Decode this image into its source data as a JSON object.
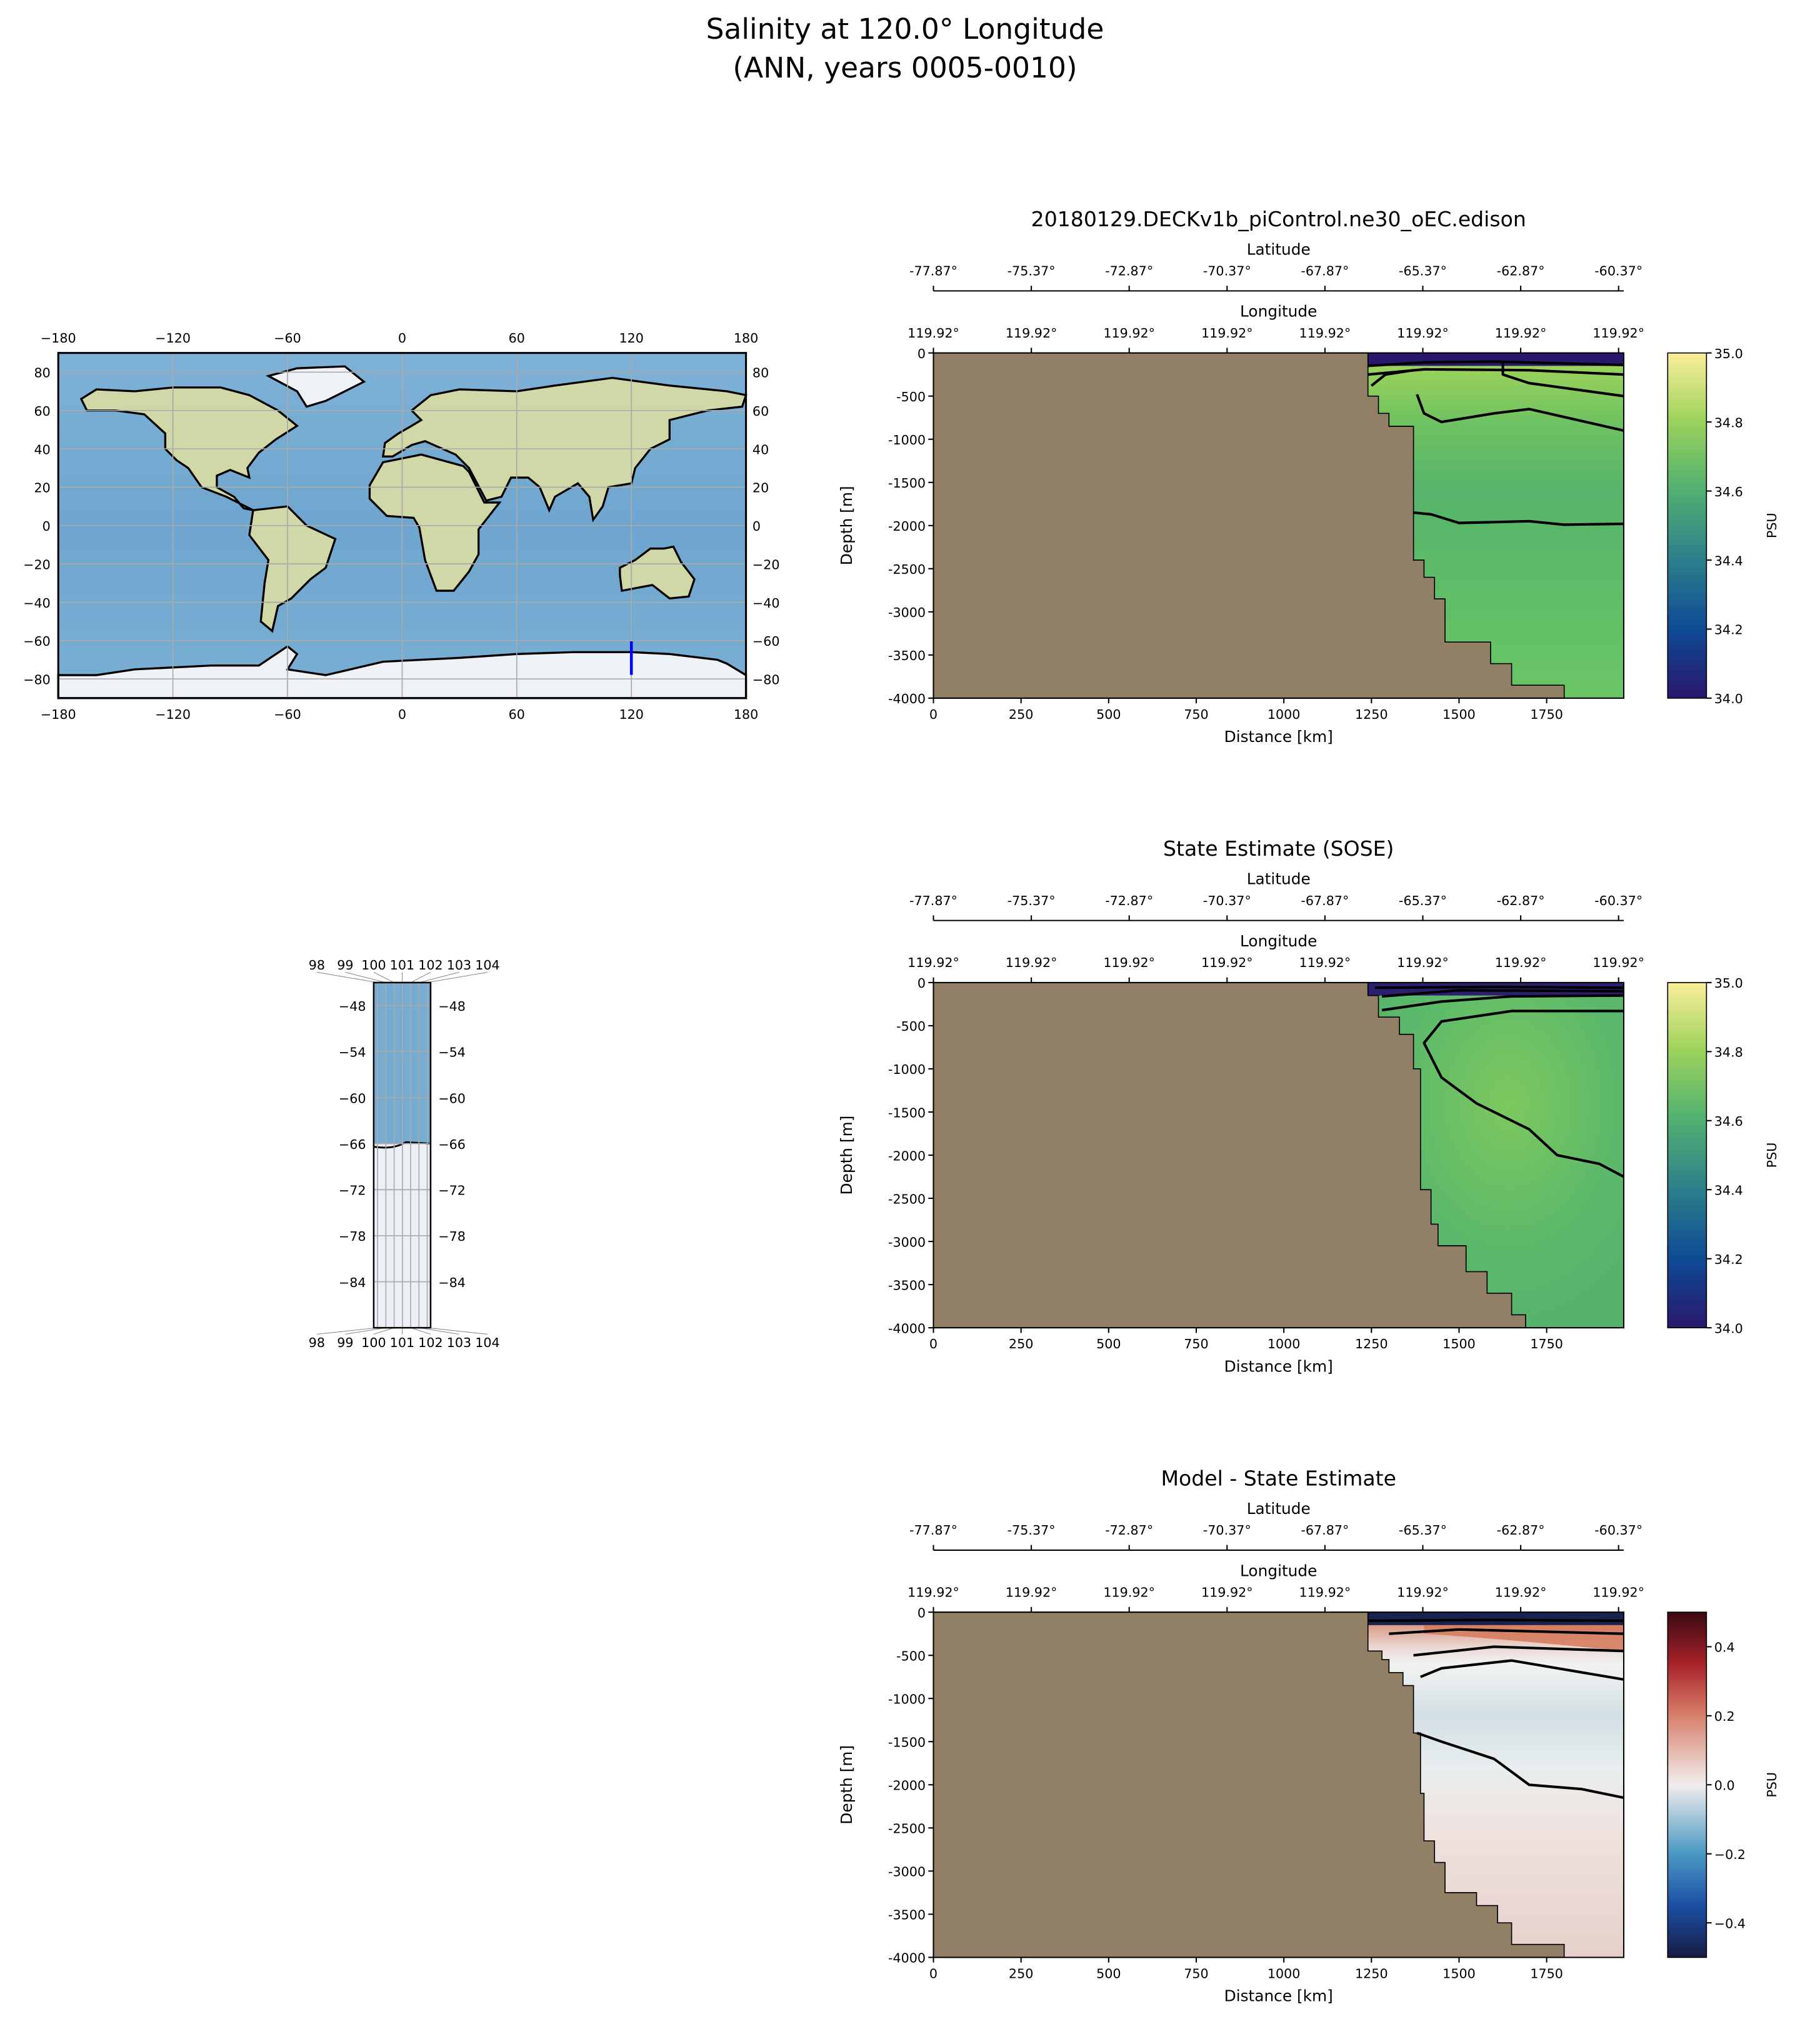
{
  "figure": {
    "title_line1": "Salinity at 120.0° Longitude",
    "title_line2": "(ANN, years 0005-0010)"
  },
  "chart_data": [
    {
      "type": "map",
      "name": "global-map",
      "xlim": [
        -180,
        180
      ],
      "ylim": [
        -90,
        90
      ],
      "xticks": [
        "−180",
        "−120",
        "−60",
        "0",
        "60",
        "120",
        "180"
      ],
      "xtick_values": [
        -180,
        -120,
        -60,
        0,
        60,
        120,
        180
      ],
      "yticks": [
        "−80",
        "−60",
        "−40",
        "−20",
        "0",
        "20",
        "40",
        "60",
        "80"
      ],
      "ytick_values": [
        -80,
        -60,
        -40,
        -20,
        0,
        20,
        40,
        60,
        80
      ],
      "grid": true,
      "section_line": {
        "lon": 120,
        "lat": [
          -60.37,
          -77.87
        ],
        "color": "#0000ff"
      }
    },
    {
      "type": "map",
      "name": "inset-map",
      "ylim": [
        -90,
        -45
      ],
      "xticks": [
        "98",
        "99",
        "100",
        "101",
        "102",
        "103",
        "104"
      ],
      "yticks": [
        "−48",
        "−54",
        "−60",
        "−66",
        "−72",
        "−78",
        "−84"
      ],
      "ytick_values": [
        -48,
        -54,
        -60,
        -66,
        -72,
        -78,
        -84
      ],
      "coast_lat": -66,
      "grid": true
    },
    {
      "type": "heatmap",
      "name": "model-section",
      "title": "20180129.DECKv1b_piControl.ne30_oEC.edison",
      "xlabel": "Distance [km]",
      "ylabel": "Depth [m]",
      "top_label1": "Latitude",
      "top_label2": "Longitude",
      "lat_ticks": [
        "-77.87°",
        "-75.37°",
        "-72.87°",
        "-70.37°",
        "-67.87°",
        "-65.37°",
        "-62.87°",
        "-60.37°"
      ],
      "lon_ticks": [
        "119.92°",
        "119.92°",
        "119.92°",
        "119.92°",
        "119.92°",
        "119.92°",
        "119.92°",
        "119.92°"
      ],
      "xlim": [
        0,
        1970
      ],
      "ylim": [
        -4000,
        0
      ],
      "xticks": [
        0,
        250,
        500,
        750,
        1000,
        1250,
        1500,
        1750
      ],
      "yticks": [
        0,
        -500,
        -1000,
        -1500,
        -2000,
        -2500,
        -3000,
        -3500,
        -4000
      ],
      "colorbar": {
        "label": "PSU",
        "range": [
          34.0,
          35.0
        ],
        "ticks": [
          "34.0",
          "34.2",
          "34.4",
          "34.6",
          "34.8",
          "35.0"
        ],
        "tick_values": [
          34.0,
          34.2,
          34.4,
          34.6,
          34.8,
          35.0
        ],
        "colormap": "haline"
      },
      "land_boundary": [
        [
          1240,
          0
        ],
        [
          1240,
          -500
        ],
        [
          1270,
          -500
        ],
        [
          1270,
          -700
        ],
        [
          1300,
          -700
        ],
        [
          1300,
          -850
        ],
        [
          1370,
          -850
        ],
        [
          1370,
          -2400
        ],
        [
          1400,
          -2400
        ],
        [
          1400,
          -2600
        ],
        [
          1430,
          -2600
        ],
        [
          1430,
          -2850
        ],
        [
          1460,
          -2850
        ],
        [
          1460,
          -3350
        ],
        [
          1590,
          -3350
        ],
        [
          1590,
          -3600
        ],
        [
          1650,
          -3600
        ],
        [
          1650,
          -3850
        ],
        [
          1800,
          -3850
        ],
        [
          1800,
          -4000
        ]
      ],
      "contours": [
        [
          [
            1240,
            -150
          ],
          [
            1400,
            -110
          ],
          [
            1600,
            -100
          ],
          [
            1970,
            -140
          ]
        ],
        [
          [
            1240,
            -250
          ],
          [
            1400,
            -190
          ],
          [
            1700,
            -200
          ],
          [
            1970,
            -250
          ]
        ],
        [
          [
            1250,
            -380
          ],
          [
            1290,
            -250
          ],
          [
            1370,
            -200
          ]
        ],
        [
          [
            1625,
            -110
          ],
          [
            1625,
            -250
          ],
          [
            1700,
            -350
          ],
          [
            1970,
            -500
          ]
        ],
        [
          [
            1380,
            -480
          ],
          [
            1400,
            -700
          ],
          [
            1450,
            -800
          ],
          [
            1600,
            -700
          ],
          [
            1700,
            -650
          ],
          [
            1970,
            -900
          ]
        ],
        [
          [
            1370,
            -1850
          ],
          [
            1420,
            -1870
          ],
          [
            1500,
            -1970
          ],
          [
            1700,
            -1950
          ],
          [
            1800,
            -1990
          ],
          [
            1970,
            -1980
          ]
        ]
      ]
    },
    {
      "type": "heatmap",
      "name": "sose-section",
      "title": "State Estimate (SOSE)",
      "xlabel": "Distance [km]",
      "ylabel": "Depth [m]",
      "top_label1": "Latitude",
      "top_label2": "Longitude",
      "lat_ticks": [
        "-77.87°",
        "-75.37°",
        "-72.87°",
        "-70.37°",
        "-67.87°",
        "-65.37°",
        "-62.87°",
        "-60.37°"
      ],
      "lon_ticks": [
        "119.92°",
        "119.92°",
        "119.92°",
        "119.92°",
        "119.92°",
        "119.92°",
        "119.92°",
        "119.92°"
      ],
      "xlim": [
        0,
        1970
      ],
      "ylim": [
        -4000,
        0
      ],
      "xticks": [
        0,
        250,
        500,
        750,
        1000,
        1250,
        1500,
        1750
      ],
      "yticks": [
        0,
        -500,
        -1000,
        -1500,
        -2000,
        -2500,
        -3000,
        -3500,
        -4000
      ],
      "colorbar": {
        "label": "PSU",
        "range": [
          34.0,
          35.0
        ],
        "ticks": [
          "34.0",
          "34.2",
          "34.4",
          "34.6",
          "34.8",
          "35.0"
        ],
        "tick_values": [
          34.0,
          34.2,
          34.4,
          34.6,
          34.8,
          35.0
        ],
        "colormap": "haline"
      },
      "land_boundary": [
        [
          1240,
          0
        ],
        [
          1240,
          -150
        ],
        [
          1270,
          -150
        ],
        [
          1270,
          -400
        ],
        [
          1330,
          -400
        ],
        [
          1330,
          -600
        ],
        [
          1370,
          -600
        ],
        [
          1370,
          -1000
        ],
        [
          1390,
          -1000
        ],
        [
          1390,
          -2400
        ],
        [
          1420,
          -2400
        ],
        [
          1420,
          -2800
        ],
        [
          1440,
          -2800
        ],
        [
          1440,
          -3050
        ],
        [
          1520,
          -3050
        ],
        [
          1520,
          -3350
        ],
        [
          1580,
          -3350
        ],
        [
          1580,
          -3600
        ],
        [
          1650,
          -3600
        ],
        [
          1650,
          -3850
        ],
        [
          1690,
          -3850
        ],
        [
          1690,
          -4000
        ]
      ],
      "contours": [
        [
          [
            1260,
            -60
          ],
          [
            1600,
            -50
          ],
          [
            1970,
            -60
          ]
        ],
        [
          [
            1280,
            -160
          ],
          [
            1500,
            -90
          ],
          [
            1970,
            -100
          ]
        ],
        [
          [
            1280,
            -320
          ],
          [
            1450,
            -220
          ],
          [
            1650,
            -160
          ],
          [
            1970,
            -150
          ]
        ],
        [
          [
            1970,
            -330
          ],
          [
            1650,
            -330
          ],
          [
            1450,
            -450
          ],
          [
            1400,
            -700
          ],
          [
            1450,
            -1100
          ],
          [
            1550,
            -1400
          ],
          [
            1650,
            -1600
          ],
          [
            1700,
            -1700
          ],
          [
            1780,
            -2000
          ],
          [
            1900,
            -2100
          ],
          [
            1970,
            -2250
          ]
        ]
      ]
    },
    {
      "type": "heatmap",
      "name": "difference-section",
      "title": "Model - State Estimate",
      "xlabel": "Distance [km]",
      "ylabel": "Depth [m]",
      "top_label1": "Latitude",
      "top_label2": "Longitude",
      "lat_ticks": [
        "-77.87°",
        "-75.37°",
        "-72.87°",
        "-70.37°",
        "-67.87°",
        "-65.37°",
        "-62.87°",
        "-60.37°"
      ],
      "lon_ticks": [
        "119.92°",
        "119.92°",
        "119.92°",
        "119.92°",
        "119.92°",
        "119.92°",
        "119.92°",
        "119.92°"
      ],
      "xlim": [
        0,
        1970
      ],
      "ylim": [
        -4000,
        0
      ],
      "xticks": [
        0,
        250,
        500,
        750,
        1000,
        1250,
        1500,
        1750
      ],
      "yticks": [
        0,
        -500,
        -1000,
        -1500,
        -2000,
        -2500,
        -3000,
        -3500,
        -4000
      ],
      "colorbar": {
        "label": "PSU",
        "range": [
          -0.5,
          0.5
        ],
        "ticks": [
          "−0.4",
          "−0.2",
          "0.0",
          "0.2",
          "0.4"
        ],
        "tick_values": [
          -0.4,
          -0.2,
          0.0,
          0.2,
          0.4
        ],
        "colormap": "balance"
      },
      "land_boundary": [
        [
          1240,
          0
        ],
        [
          1240,
          -450
        ],
        [
          1280,
          -450
        ],
        [
          1280,
          -550
        ],
        [
          1300,
          -550
        ],
        [
          1300,
          -700
        ],
        [
          1340,
          -700
        ],
        [
          1340,
          -850
        ],
        [
          1370,
          -850
        ],
        [
          1370,
          -1400
        ],
        [
          1390,
          -1400
        ],
        [
          1390,
          -2100
        ],
        [
          1400,
          -2100
        ],
        [
          1400,
          -2650
        ],
        [
          1430,
          -2650
        ],
        [
          1430,
          -2900
        ],
        [
          1460,
          -2900
        ],
        [
          1460,
          -3250
        ],
        [
          1550,
          -3250
        ],
        [
          1550,
          -3400
        ],
        [
          1610,
          -3400
        ],
        [
          1610,
          -3600
        ],
        [
          1650,
          -3600
        ],
        [
          1650,
          -3850
        ],
        [
          1800,
          -3850
        ],
        [
          1800,
          -4000
        ]
      ],
      "contours": [
        [
          [
            1240,
            -100
          ],
          [
            1600,
            -90
          ],
          [
            1970,
            -100
          ]
        ],
        [
          [
            1300,
            -250
          ],
          [
            1500,
            -200
          ],
          [
            1970,
            -250
          ]
        ],
        [
          [
            1370,
            -500
          ],
          [
            1600,
            -400
          ],
          [
            1970,
            -450
          ]
        ],
        [
          [
            1390,
            -750
          ],
          [
            1450,
            -650
          ],
          [
            1650,
            -560
          ],
          [
            1970,
            -780
          ]
        ],
        [
          [
            1380,
            -1400
          ],
          [
            1450,
            -1500
          ],
          [
            1600,
            -1700
          ],
          [
            1700,
            -2000
          ],
          [
            1850,
            -2050
          ],
          [
            1970,
            -2150
          ]
        ]
      ]
    }
  ]
}
